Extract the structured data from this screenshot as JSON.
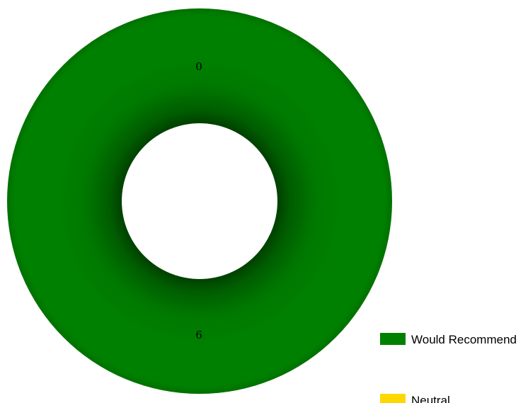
{
  "chart_data": {
    "type": "pie",
    "donut": true,
    "series": [
      {
        "name": "Would Recommend",
        "value": 6,
        "color": "#008000"
      },
      {
        "name": "Neutral",
        "value": 0,
        "color": "#ffd700"
      }
    ],
    "data_labels": [
      "6",
      "0"
    ],
    "legend": {
      "position": "bottom-right",
      "entries": [
        "Would Recommend",
        "Neutral"
      ]
    }
  }
}
